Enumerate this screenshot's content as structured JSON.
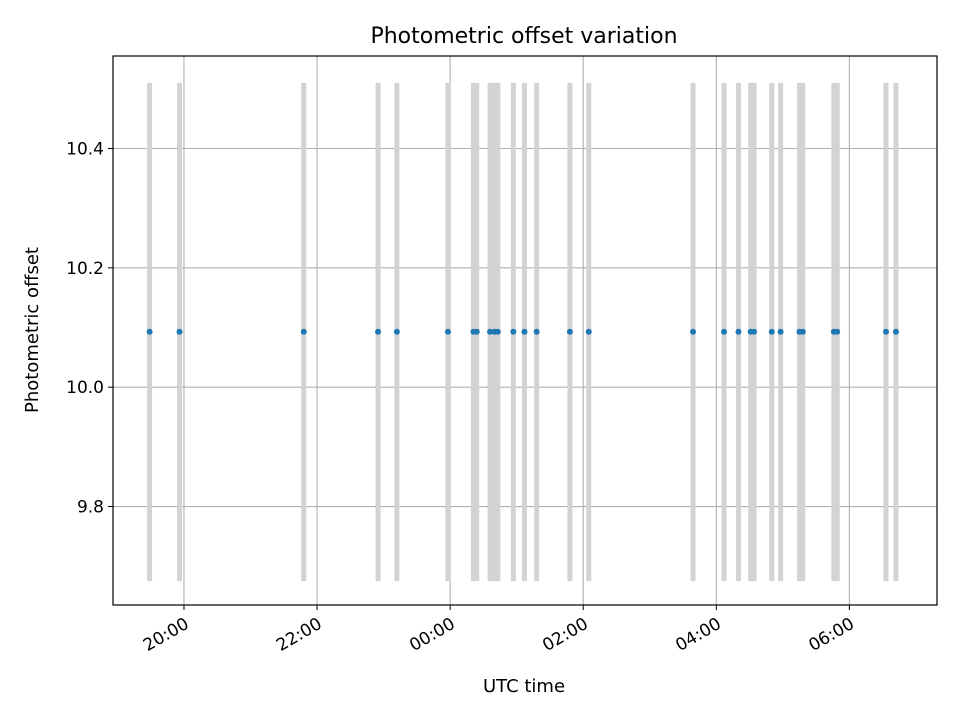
{
  "chart_data": {
    "type": "scatter",
    "title": "Photometric offset variation",
    "xlabel": "UTC time",
    "ylabel": "Photometric offset",
    "x_axis_type": "time",
    "xlim": [
      "2019-10-26T18:56:00",
      "2019-10-27T07:19:00"
    ],
    "ylim": [
      9.635,
      10.555
    ],
    "grid": true,
    "x_ticks": [
      {
        "t": "2019-10-26T20:00:00",
        "label": "20:00"
      },
      {
        "t": "2019-10-26T22:00:00",
        "label": "22:00"
      },
      {
        "t": "2019-10-27T00:00:00",
        "label": "00:00"
      },
      {
        "t": "2019-10-27T02:00:00",
        "label": "02:00"
      },
      {
        "t": "2019-10-27T04:00:00",
        "label": "04:00"
      },
      {
        "t": "2019-10-27T06:00:00",
        "label": "06:00"
      }
    ],
    "y_ticks": [
      {
        "v": 9.8,
        "label": "9.8"
      },
      {
        "v": 10.0,
        "label": "10.0"
      },
      {
        "v": 10.2,
        "label": "10.2"
      },
      {
        "v": 10.4,
        "label": "10.4"
      }
    ],
    "points": {
      "color": "#1f77b4",
      "x": [
        "2019-10-26T19:29:00",
        "2019-10-26T19:56:00",
        "2019-10-26T21:48:00",
        "2019-10-26T22:55:00",
        "2019-10-26T23:12:00",
        "2019-10-26T23:58:00",
        "2019-10-27T00:21:00",
        "2019-10-27T00:24:00",
        "2019-10-27T00:36:00",
        "2019-10-27T00:40:00",
        "2019-10-27T00:43:00",
        "2019-10-27T00:57:00",
        "2019-10-27T01:07:00",
        "2019-10-27T01:18:00",
        "2019-10-27T01:48:00",
        "2019-10-27T02:05:00",
        "2019-10-27T03:39:00",
        "2019-10-27T04:07:00",
        "2019-10-27T04:20:00",
        "2019-10-27T04:31:00",
        "2019-10-27T04:34:00",
        "2019-10-27T04:50:00",
        "2019-10-27T04:58:00",
        "2019-10-27T05:15:00",
        "2019-10-27T05:18:00",
        "2019-10-27T05:46:00",
        "2019-10-27T05:49:00",
        "2019-10-27T06:33:00",
        "2019-10-27T06:42:00"
      ],
      "y": [
        10.093,
        10.093,
        10.093,
        10.093,
        10.093,
        10.093,
        10.093,
        10.093,
        10.093,
        10.093,
        10.093,
        10.093,
        10.093,
        10.093,
        10.093,
        10.093,
        10.093,
        10.093,
        10.093,
        10.093,
        10.093,
        10.093,
        10.093,
        10.093,
        10.093,
        10.093,
        10.093,
        10.093,
        10.093
      ]
    },
    "bands": {
      "color": "#d3d3d3",
      "y_range": [
        9.675,
        10.51
      ]
    }
  }
}
